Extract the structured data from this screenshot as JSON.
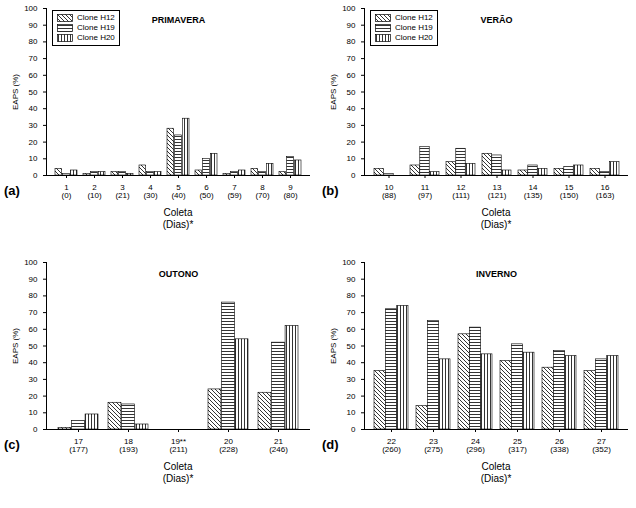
{
  "chart_data": [
    {
      "type": "bar",
      "title": "PRIMAVERA",
      "annotation": "(a)",
      "x_label": "Coleta\n(Dias)*",
      "y_label": "EAPS (%)",
      "categories": [
        "1\n(0)",
        "2\n(10)",
        "3\n(21)",
        "4\n(30)",
        "5\n(40)",
        "6\n(50)",
        "7\n(59)",
        "8\n(70)",
        "9\n(80)"
      ],
      "series": [
        {
          "name": "Clone H12",
          "color": "#000000",
          "values": [
            4,
            1,
            2,
            6,
            28,
            3,
            1,
            4,
            2
          ]
        },
        {
          "name": "Clone H19",
          "color": "#000000",
          "values": [
            1,
            2,
            2,
            2,
            24,
            10,
            2,
            2,
            11
          ]
        },
        {
          "name": "Clone H20",
          "color": "#000000",
          "values": [
            3,
            2,
            1,
            2,
            34,
            13,
            3,
            7,
            9
          ]
        }
      ],
      "ylim": [
        0,
        100
      ],
      "yticks": [
        0,
        10,
        20,
        30,
        40,
        50,
        60,
        70,
        80,
        90,
        100
      ],
      "grid": false,
      "legend": "upper left"
    },
    {
      "type": "bar",
      "title": "VERÃO",
      "annotation": "(b)",
      "x_label": "Coleta\n(Dias)*",
      "y_label": "EAPS (%)",
      "categories": [
        "10\n(88)",
        "11\n(97)",
        "12\n(111)",
        "13\n(121)",
        "14\n(135)",
        "15\n(150)",
        "16\n(163)"
      ],
      "series": [
        {
          "name": "Clone H12",
          "color": "#000000",
          "values": [
            4,
            6,
            8,
            13,
            3,
            4,
            4
          ]
        },
        {
          "name": "Clone H19",
          "color": "#000000",
          "values": [
            1,
            17,
            16,
            12,
            6,
            5,
            2
          ]
        },
        {
          "name": "Clone H20",
          "color": "#000000",
          "values": [
            0,
            2,
            7,
            3,
            4,
            6,
            8
          ]
        }
      ],
      "ylim": [
        0,
        100
      ],
      "yticks": [
        0,
        10,
        20,
        30,
        40,
        50,
        60,
        70,
        80,
        90,
        100
      ],
      "grid": false,
      "legend": "upper left"
    },
    {
      "type": "bar",
      "title": "OUTONO",
      "annotation": "(c)",
      "x_label": "Coleta\n(Dias)*",
      "y_label": "EAPS (%)",
      "categories": [
        "17\n(177)",
        "18\n(193)",
        "19**\n(211)",
        "20\n(228)",
        "21\n(246)"
      ],
      "series": [
        {
          "name": "Clone H12",
          "color": "#000000",
          "values": [
            1,
            16,
            null,
            24,
            22
          ]
        },
        {
          "name": "Clone H19",
          "color": "#000000",
          "values": [
            5,
            15,
            null,
            76,
            52
          ]
        },
        {
          "name": "Clone H20",
          "color": "#000000",
          "values": [
            9,
            3,
            null,
            54,
            62
          ]
        }
      ],
      "ylim": [
        0,
        100
      ],
      "yticks": [
        0,
        10,
        20,
        30,
        40,
        50,
        60,
        70,
        80,
        90,
        100
      ],
      "grid": false
    },
    {
      "type": "bar",
      "title": "INVERNO",
      "annotation": "(d)",
      "x_label": "Coleta\n(Dias)*",
      "y_label": "EAPS (%)",
      "categories": [
        "22\n(260)",
        "23\n(275)",
        "24\n(296)",
        "25\n(317)",
        "26\n(338)",
        "27\n(352)"
      ],
      "series": [
        {
          "name": "Clone H12",
          "color": "#000000",
          "values": [
            35,
            14,
            57,
            41,
            37,
            35
          ]
        },
        {
          "name": "Clone H19",
          "color": "#000000",
          "values": [
            72,
            65,
            61,
            51,
            47,
            42
          ]
        },
        {
          "name": "Clone H20",
          "color": "#000000",
          "values": [
            74,
            42,
            45,
            46,
            44,
            44
          ]
        }
      ],
      "ylim": [
        0,
        100
      ],
      "yticks": [
        0,
        10,
        20,
        30,
        40,
        50,
        60,
        70,
        80,
        90,
        100
      ],
      "grid": false
    }
  ]
}
